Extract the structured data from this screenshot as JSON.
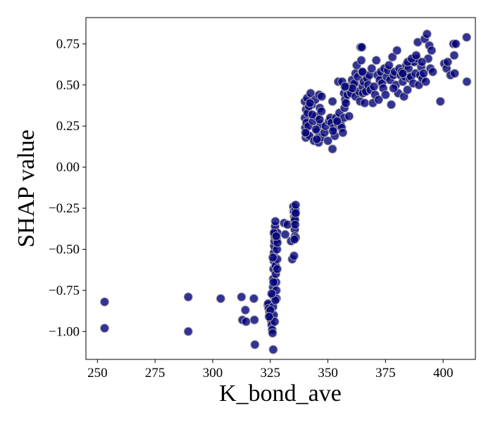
{
  "chart_data": {
    "type": "scatter",
    "title": "",
    "xlabel": "K_bond_ave",
    "ylabel": "SHAP value",
    "xlim": [
      245,
      414
    ],
    "ylim": [
      -1.17,
      0.91
    ],
    "xticks": [
      250,
      275,
      300,
      325,
      350,
      375,
      400
    ],
    "yticks": [
      -1.0,
      -0.75,
      -0.5,
      -0.25,
      0.0,
      0.25,
      0.5,
      0.75
    ],
    "xtick_labels": [
      "250",
      "275",
      "300",
      "325",
      "350",
      "375",
      "400"
    ],
    "ytick_labels": [
      "−1.00",
      "−0.75",
      "−0.50",
      "−0.25",
      "0.00",
      "0.25",
      "0.50",
      "0.75"
    ],
    "grid": false,
    "legend": false,
    "marker_color": "#00007a",
    "marker_edge_color": "#aaaaaa",
    "series": [
      {
        "x": [
          253.1,
          253.1,
          289.4,
          289.4,
          303.5,
          312.5,
          312.9,
          314.2,
          314.5,
          317.9,
          318.1,
          318.3,
          323.9,
          324.1,
          324.3,
          324.6,
          325.0,
          325.3,
          325.6,
          325.8,
          326.0,
          326.1,
          326.2,
          326.3,
          326.4,
          326.5,
          326.6,
          326.7,
          326.8,
          326.9,
          327.0,
          327.1,
          327.2,
          327.3,
          327.4,
          327.5,
          327.6,
          327.7,
          327.8,
          327.9,
          328.0,
          328.0,
          328.1,
          328.1,
          326.3,
          326.2,
          326.5,
          326.9,
          327.2,
          326.4,
          325.6,
          325.0,
          324.5,
          326.1,
          326.6,
          327.6,
          331.0,
          331.5,
          332.5,
          334.0,
          334.5,
          335.0,
          335.2,
          335.4,
          335.5,
          335.6,
          335.7,
          335.8,
          335.9,
          336.0,
          336.0,
          335.3,
          335.7,
          335.8,
          336.0,
          335.5,
          340.0,
          340.0,
          340.2,
          340.4,
          340.5,
          340.7,
          340.9,
          341.0,
          341.2,
          341.5,
          342.0,
          342.5,
          343.0,
          343.5,
          344.0,
          344.5,
          345.0,
          345.5,
          346.0,
          346.2,
          346.5,
          346.8,
          347.0,
          347.3,
          340.3,
          341.8,
          343.2,
          344.8,
          346.4,
          347.2,
          342.2,
          345.2,
          348.5,
          349.0,
          350.0,
          350.5,
          351.0,
          351.5,
          352.0,
          352.0,
          352.5,
          353.0,
          353.5,
          354.0,
          354.5,
          355.0,
          355.5,
          356.0,
          356.5,
          357.0,
          357.0,
          357.2,
          357.5,
          357.8,
          358.0,
          358.5,
          359.0,
          359.5,
          360.0,
          360.5,
          361.0,
          361.5,
          362.0,
          362.0,
          362.5,
          363.0,
          363.5,
          364.0,
          364.2,
          364.5,
          364.8,
          365.0,
          365.2,
          365.5,
          366.0,
          366.5,
          367.0,
          367.5,
          368.0,
          368.5,
          369.0,
          369.5,
          370.0,
          370.5,
          371.0,
          371.5,
          372.0,
          372.5,
          373.0,
          373.5,
          374.0,
          374.5,
          375.0,
          375.5,
          376.0,
          376.5,
          377.0,
          377.5,
          378.0,
          378.5,
          379.0,
          379.5,
          380.0,
          380.5,
          381.0,
          381.5,
          382.0,
          382.5,
          383.0,
          383.5,
          384.0,
          384.5,
          385.0,
          385.5,
          386.0,
          386.5,
          387.0,
          387.5,
          388.0,
          388.5,
          389.0,
          389.5,
          390.0,
          390.5,
          391.0,
          391.5,
          392.0,
          392.5,
          393.0,
          393.5,
          394.0,
          394.5,
          395.0,
          395.5,
          398.8,
          400.5,
          401.5,
          402.0,
          403.2,
          404.5,
          404.8,
          405.0,
          405.5,
          410.2,
          410.3,
          364.7,
          365.0,
          360.6,
          378.5,
          382.5,
          384.6,
          386.4,
          388.3,
          390.8,
          356.2,
          357.4,
          354.0,
          352.2,
          359.2
        ],
        "y": [
          -0.82,
          -0.98,
          -0.79,
          -1.0,
          -0.8,
          -0.79,
          -0.93,
          -0.87,
          -0.94,
          -0.8,
          -0.93,
          -1.08,
          -0.84,
          -0.83,
          -0.86,
          -0.88,
          -0.9,
          -0.93,
          -0.96,
          -0.99,
          -1.01,
          -0.78,
          -0.73,
          -0.68,
          -0.62,
          -0.57,
          -0.52,
          -0.48,
          -0.45,
          -0.42,
          -0.39,
          -0.36,
          -0.33,
          -0.6,
          -0.65,
          -0.7,
          -0.75,
          -0.8,
          -0.44,
          -0.5,
          -0.56,
          -0.62,
          -0.4,
          -0.46,
          -1.11,
          -0.85,
          -0.9,
          -0.94,
          -0.81,
          -0.7,
          -0.77,
          -0.87,
          -0.91,
          -0.55,
          -0.4,
          -0.42,
          -0.34,
          -0.41,
          -0.35,
          -0.45,
          -0.56,
          -0.24,
          -0.27,
          -0.3,
          -0.33,
          -0.38,
          -0.42,
          -0.29,
          -0.26,
          -0.23,
          -0.43,
          -0.54,
          -0.32,
          -0.35,
          -0.28,
          -0.44,
          0.4,
          0.3,
          0.24,
          0.18,
          0.35,
          0.27,
          0.2,
          0.42,
          0.33,
          0.25,
          0.19,
          0.45,
          0.38,
          0.28,
          0.16,
          0.41,
          0.31,
          0.22,
          0.15,
          0.44,
          0.36,
          0.26,
          0.18,
          0.43,
          0.21,
          0.37,
          0.32,
          0.23,
          0.29,
          0.34,
          0.39,
          0.17,
          0.21,
          0.25,
          0.16,
          0.28,
          0.3,
          0.27,
          0.11,
          0.4,
          0.24,
          0.19,
          0.3,
          0.27,
          0.52,
          0.33,
          0.26,
          0.24,
          0.21,
          0.3,
          0.45,
          0.36,
          0.41,
          0.39,
          0.48,
          0.44,
          0.49,
          0.47,
          0.45,
          0.53,
          0.5,
          0.51,
          0.43,
          0.57,
          0.62,
          0.55,
          0.46,
          0.4,
          0.73,
          0.65,
          0.58,
          0.49,
          0.45,
          0.52,
          0.39,
          0.46,
          0.54,
          0.5,
          0.56,
          0.47,
          0.6,
          0.39,
          0.49,
          0.44,
          0.65,
          0.56,
          0.41,
          0.53,
          0.58,
          0.51,
          0.48,
          0.6,
          0.44,
          0.55,
          0.59,
          0.62,
          0.53,
          0.38,
          0.67,
          0.56,
          0.58,
          0.5,
          0.71,
          0.45,
          0.6,
          0.56,
          0.58,
          0.52,
          0.43,
          0.55,
          0.62,
          0.47,
          0.6,
          0.54,
          0.55,
          0.64,
          0.51,
          0.64,
          0.57,
          0.66,
          0.76,
          0.5,
          0.56,
          0.61,
          0.54,
          0.57,
          0.78,
          0.52,
          0.81,
          0.66,
          0.74,
          0.6,
          0.71,
          0.58,
          0.4,
          0.63,
          0.6,
          0.64,
          0.56,
          0.75,
          0.68,
          0.57,
          0.75,
          0.79,
          0.52,
          0.73,
          0.58,
          0.48,
          0.48,
          0.57,
          0.64,
          0.66,
          0.68,
          0.64,
          0.52,
          0.49,
          0.28,
          0.22,
          0.31
        ]
      }
    ]
  }
}
